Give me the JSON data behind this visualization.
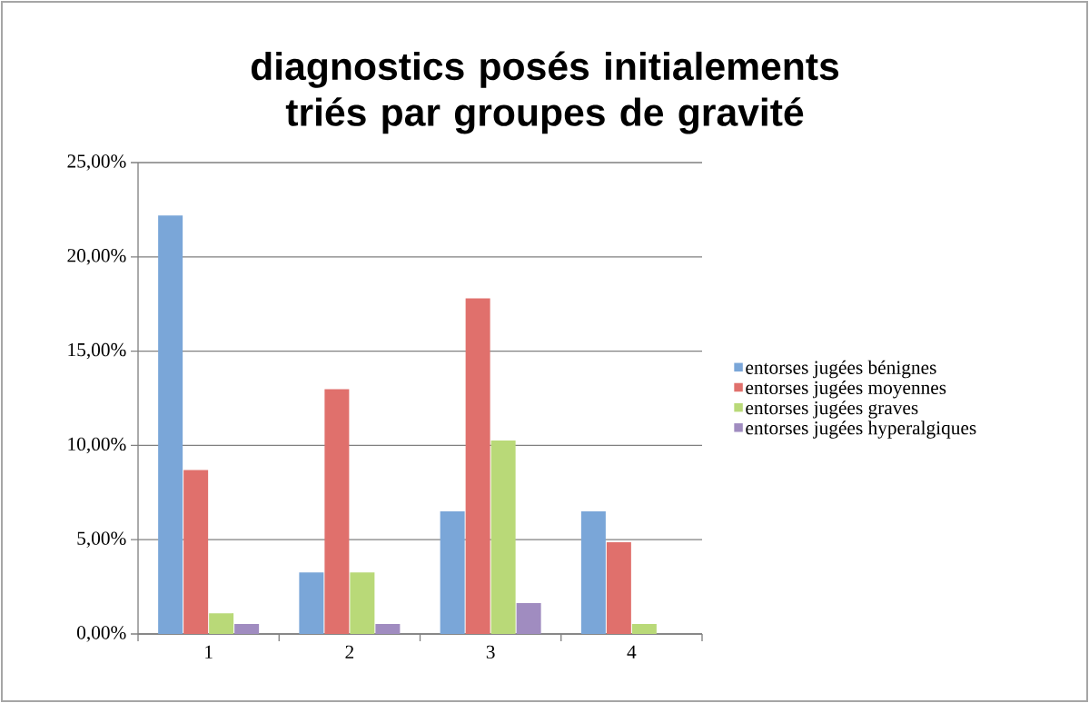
{
  "chart_data": {
    "type": "bar",
    "title": "diagnostics posés initialements triés par groupes de gravité",
    "categories": [
      "1",
      "2",
      "3",
      "4"
    ],
    "series": [
      {
        "name": "entorses jugées bénignes",
        "color": "#7aa6d8",
        "values": [
          22.2,
          3.26,
          6.5,
          6.5
        ]
      },
      {
        "name": "entorses jugées moyennes",
        "color": "#e0706c",
        "values": [
          8.7,
          12.98,
          17.8,
          4.87
        ]
      },
      {
        "name": "entorses jugées graves",
        "color": "#b9d978",
        "values": [
          1.1,
          3.26,
          10.26,
          0.53
        ]
      },
      {
        "name": "entorses jugées hyperalgiques",
        "color": "#a08cc0",
        "values": [
          0.53,
          0.53,
          1.64,
          0
        ]
      }
    ],
    "ylim": [
      0,
      25
    ],
    "yticks": [
      {
        "value": 0,
        "label": "0,00%"
      },
      {
        "value": 5,
        "label": "5,00%"
      },
      {
        "value": 10,
        "label": "10,00%"
      },
      {
        "value": 15,
        "label": "15,00%"
      },
      {
        "value": 20,
        "label": "20,00%"
      },
      {
        "value": 25,
        "label": "25,00%"
      }
    ],
    "grid": "y",
    "legend": "right"
  }
}
